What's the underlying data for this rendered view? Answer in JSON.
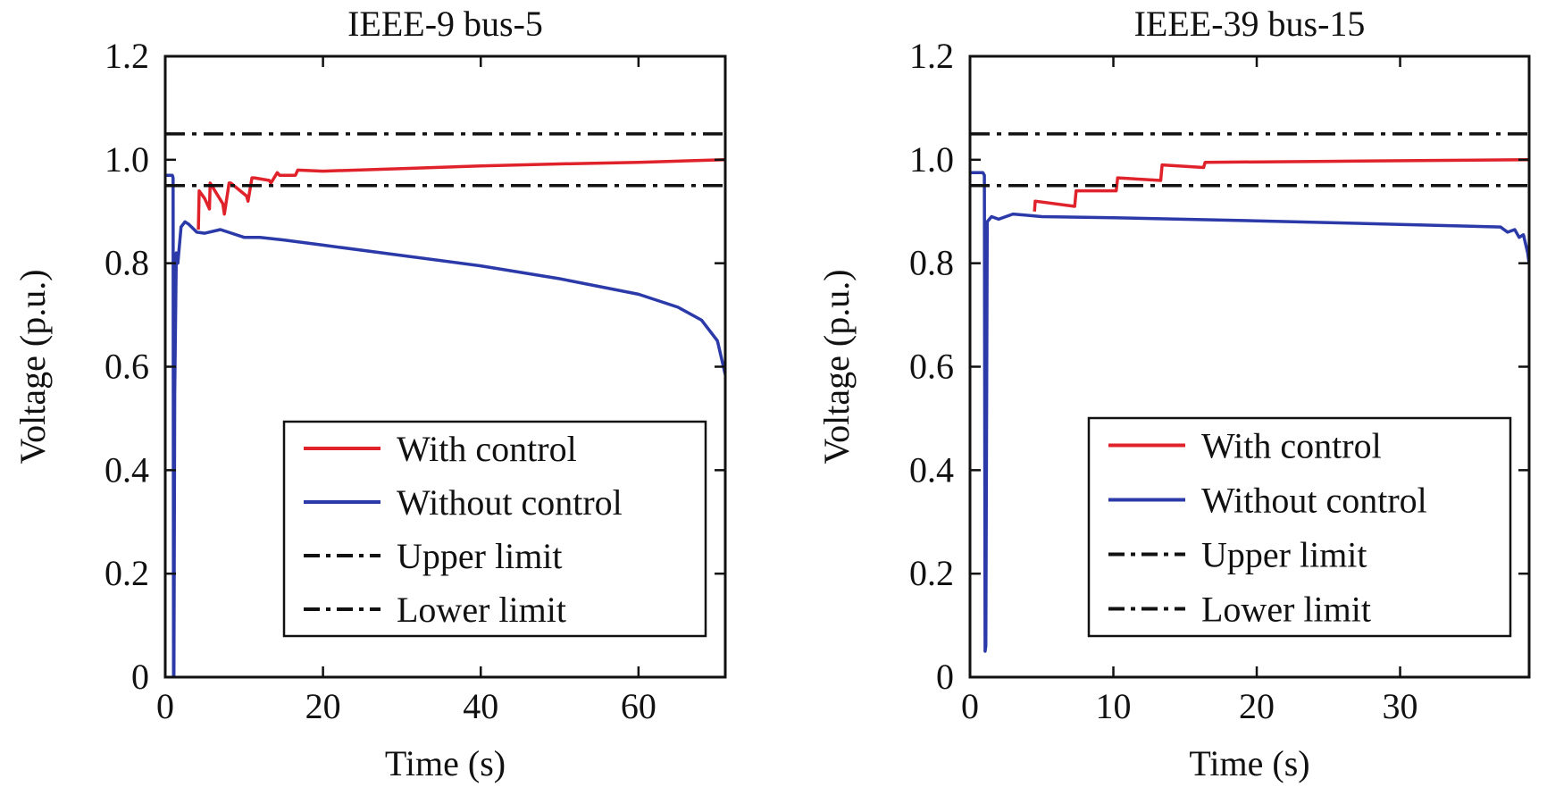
{
  "chart_data": [
    {
      "type": "line",
      "title": "IEEE-9 bus-5",
      "xlabel": "Time (s)",
      "ylabel": "Voltage (p.u.)",
      "xlim": [
        0,
        71
      ],
      "ylim": [
        0,
        1.2
      ],
      "xticks": [
        "0",
        "20",
        "40",
        "60"
      ],
      "yticks": [
        "0",
        "0.2",
        "0.4",
        "0.6",
        "0.8",
        "1.0",
        "1.2"
      ],
      "legend_position": "bottom-right",
      "grid": false,
      "series": [
        {
          "name": "With control",
          "color": "#e0232b",
          "style": "solid",
          "x": [
            4.2,
            4.3,
            5,
            5.6,
            5.7,
            7.3,
            7.5,
            8.1,
            8.3,
            10.3,
            10.5,
            11,
            11.3,
            13.2,
            13.4,
            14.2,
            14.5,
            16.5,
            16.8,
            20,
            30,
            40,
            50,
            60,
            71
          ],
          "y": [
            0.865,
            0.94,
            0.925,
            0.905,
            0.955,
            0.915,
            0.895,
            0.955,
            0.955,
            0.93,
            0.92,
            0.965,
            0.965,
            0.96,
            0.955,
            0.975,
            0.97,
            0.97,
            0.98,
            0.978,
            0.983,
            0.988,
            0.992,
            0.995,
            1.0
          ]
        },
        {
          "name": "Without control",
          "color": "#2b3aa8",
          "style": "solid",
          "x": [
            0,
            0.9,
            1.0,
            1.05,
            1.1,
            1.2,
            1.4,
            1.6,
            2.0,
            2.5,
            3.0,
            4.0,
            5.0,
            7.0,
            8.0,
            10.0,
            12.0,
            15.0,
            20,
            30,
            40,
            50,
            60,
            65,
            68,
            70,
            71
          ],
          "y": [
            0.97,
            0.97,
            0.965,
            0.0,
            0.0,
            0.55,
            0.82,
            0.8,
            0.87,
            0.88,
            0.875,
            0.86,
            0.858,
            0.865,
            0.86,
            0.85,
            0.85,
            0.845,
            0.835,
            0.815,
            0.795,
            0.77,
            0.74,
            0.715,
            0.69,
            0.65,
            0.585
          ]
        },
        {
          "name": "Upper limit",
          "color": "#111111",
          "style": "dashdot",
          "x": [
            0,
            71
          ],
          "y": [
            1.05,
            1.05
          ]
        },
        {
          "name": "Lower limit",
          "color": "#111111",
          "style": "dashdot",
          "x": [
            0,
            71
          ],
          "y": [
            0.95,
            0.95
          ]
        }
      ]
    },
    {
      "type": "line",
      "title": "IEEE-39 bus-15",
      "xlabel": "Time (s)",
      "ylabel": "Voltage (p.u.)",
      "xlim": [
        0,
        39
      ],
      "ylim": [
        0,
        1.2
      ],
      "xticks": [
        "0",
        "10",
        "20",
        "30"
      ],
      "yticks": [
        "0",
        "0.2",
        "0.4",
        "0.6",
        "0.8",
        "1.0",
        "1.2"
      ],
      "legend_position": "bottom-right",
      "grid": false,
      "series": [
        {
          "name": "With control",
          "color": "#e0232b",
          "style": "solid",
          "x": [
            4.5,
            4.55,
            7.3,
            7.4,
            10.2,
            10.3,
            13.3,
            13.4,
            16.3,
            16.4,
            25,
            39
          ],
          "y": [
            0.9,
            0.92,
            0.91,
            0.94,
            0.94,
            0.965,
            0.96,
            0.99,
            0.985,
            0.995,
            0.997,
            1.0
          ]
        },
        {
          "name": "Without control",
          "color": "#2b3aa8",
          "style": "solid",
          "x": [
            0,
            0.9,
            1.0,
            1.05,
            1.1,
            1.2,
            1.5,
            2.0,
            2.5,
            3.0,
            5,
            10,
            20,
            30,
            37,
            37.5,
            38,
            38.3,
            38.6,
            38.9,
            39
          ],
          "y": [
            0.975,
            0.975,
            0.97,
            0.05,
            0.06,
            0.88,
            0.89,
            0.885,
            0.89,
            0.895,
            0.89,
            0.888,
            0.882,
            0.875,
            0.87,
            0.86,
            0.865,
            0.85,
            0.855,
            0.82,
            0.8
          ]
        },
        {
          "name": "Upper limit",
          "color": "#111111",
          "style": "dashdot",
          "x": [
            0,
            39
          ],
          "y": [
            1.05,
            1.05
          ]
        },
        {
          "name": "Lower limit",
          "color": "#111111",
          "style": "dashdot",
          "x": [
            0,
            39
          ],
          "y": [
            0.95,
            0.95
          ]
        }
      ]
    }
  ]
}
